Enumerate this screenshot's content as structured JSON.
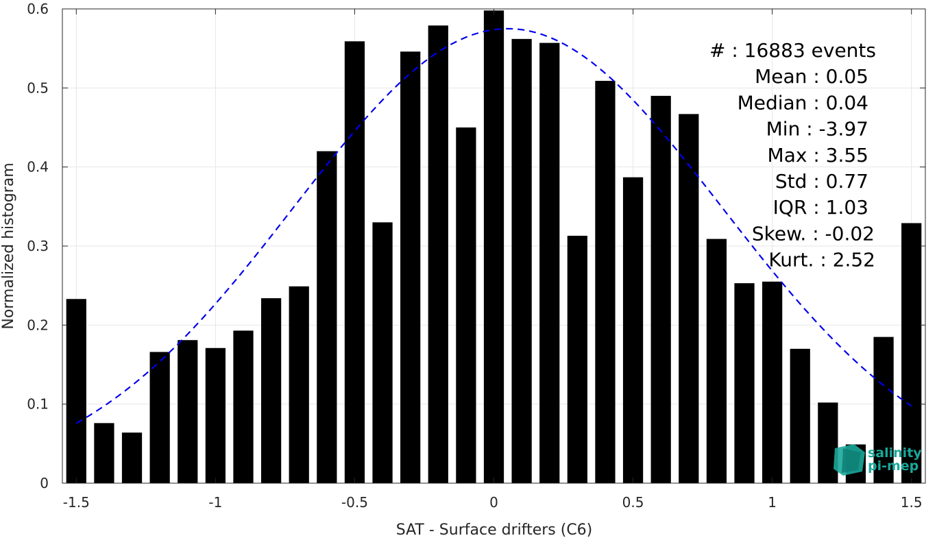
{
  "chart_data": {
    "type": "bar",
    "xlabel": "SAT - Surface drifters (C6)",
    "ylabel": "Normalized histogram",
    "xlim": [
      -1.55,
      1.55
    ],
    "ylim": [
      0,
      0.6
    ],
    "xticks": [
      "-1.5",
      "-1",
      "-0.5",
      "0",
      "0.5",
      "1",
      "1.5"
    ],
    "yticks": [
      "0",
      "0.1",
      "0.2",
      "0.3",
      "0.4",
      "0.5",
      "0.6"
    ],
    "grid": true,
    "bar_color": "#000000",
    "x": [
      -1.5,
      -1.4,
      -1.3,
      -1.2,
      -1.1,
      -1.0,
      -0.9,
      -0.8,
      -0.7,
      -0.6,
      -0.5,
      -0.4,
      -0.3,
      -0.2,
      -0.1,
      0.0,
      0.1,
      0.2,
      0.3,
      0.4,
      0.5,
      0.6,
      0.7,
      0.8,
      0.9,
      1.0,
      1.1,
      1.2,
      1.3,
      1.4,
      1.5
    ],
    "values": [
      0.233,
      0.076,
      0.064,
      0.166,
      0.181,
      0.171,
      0.193,
      0.234,
      0.249,
      0.42,
      0.559,
      0.33,
      0.546,
      0.579,
      0.45,
      0.598,
      0.562,
      0.557,
      0.313,
      0.509,
      0.387,
      0.49,
      0.467,
      0.309,
      0.253,
      0.255,
      0.17,
      0.102,
      0.049,
      0.185,
      0.329
    ],
    "fit": {
      "type": "gaussian",
      "mean": 0.05,
      "std": 0.77,
      "x_range": [
        -1.5,
        1.5
      ],
      "color": "#0000ee",
      "style": "dashed"
    },
    "stats": [
      "#  : 16883 events",
      "Mean : 0.05",
      "Median : 0.04",
      "Min : -3.97",
      "Max : 3.55",
      "Std : 0.77",
      "IQR : 1.03",
      "Skew. : -0.02",
      "Kurt. : 2.52"
    ]
  },
  "logo": {
    "line1": "salinity",
    "line2": "pi-mep",
    "color": "#1aa89a"
  }
}
